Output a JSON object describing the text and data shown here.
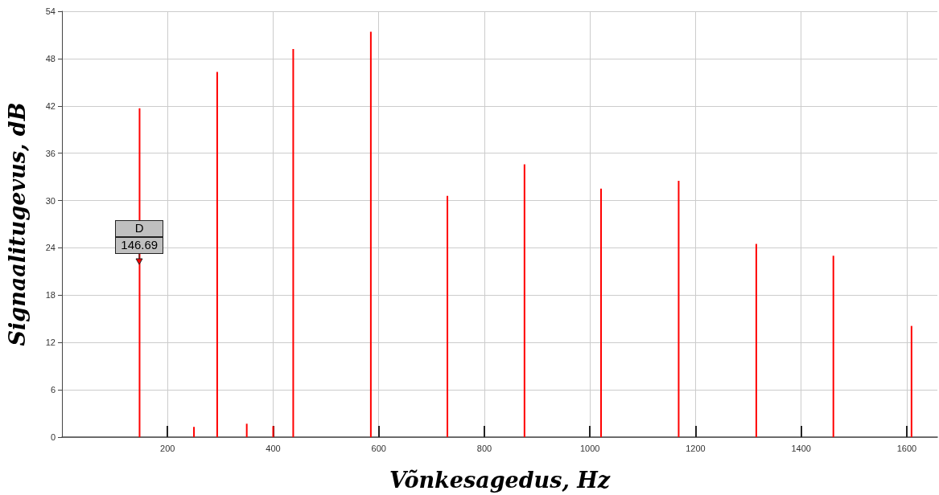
{
  "chart_data": {
    "type": "bar",
    "xlabel": "Võnkesagedus, Hz",
    "ylabel": "Signaalitugevus, dB",
    "x": [
      147,
      250,
      294,
      350,
      400,
      438,
      585,
      730,
      876,
      1021,
      1168,
      1315,
      1461,
      1609
    ],
    "values": [
      41.7,
      1.3,
      46.3,
      1.7,
      1.4,
      49.2,
      51.4,
      30.6,
      34.6,
      31.5,
      32.5,
      24.5,
      23.0,
      14.1
    ],
    "color": "#ff0000",
    "xlim": [
      0,
      1658
    ],
    "xticks": [
      200,
      400,
      600,
      800,
      1000,
      1200,
      1400,
      1600
    ],
    "ylim": [
      0,
      54
    ],
    "yticks": [
      0,
      6,
      12,
      18,
      24,
      30,
      36,
      42,
      48,
      54
    ],
    "grid": true,
    "annotations": [
      {
        "text": "D\n146.69",
        "x": 146.69,
        "y": 21.6
      }
    ]
  }
}
